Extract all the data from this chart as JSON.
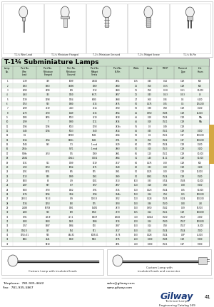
{
  "title": "T-1¾ Subminiature Lamps",
  "page_num": "41",
  "catalog": "Engineering Catalog 169",
  "company": "Gilway",
  "company_sub": "Technical Lamps",
  "telephone": "Telephone:  781-935-4442",
  "fax": "Fax:  781-935-5867",
  "email": "sales@gilway.com",
  "website": "www.gilway.com",
  "table_header_bg": "#c8ddc8",
  "col_headers_line1": [
    "Lamp",
    "Part No.",
    "Part No.",
    "Part No.",
    "Part No.",
    "Part No.",
    "",
    "",
    "",
    "Filament",
    "Life"
  ],
  "col_headers_line2": [
    "No.",
    "Wire",
    "Miniature",
    "Miniature",
    "Midget",
    "Bi-Pin",
    "Watts",
    "Amps",
    "MSCP",
    "Type",
    "Hours"
  ],
  "col_headers_line3": [
    "",
    "Lead",
    "Flanged",
    "Grooved",
    "Screw",
    "",
    "",
    "",
    "",
    "",
    ""
  ],
  "rows": [
    [
      "1",
      "4139",
      "339",
      "1099",
      "49610",
      "7851",
      "1.35",
      "0.45",
      "0-14",
      "C-2R",
      "500"
    ],
    [
      "2",
      "1763",
      "1963",
      "34090",
      "1769",
      "7860",
      "2.5",
      "0.50",
      "0-3.5",
      "C-2R",
      "500"
    ],
    [
      "3",
      "2499",
      "2499",
      "299",
      "7312",
      "7860",
      "2.5",
      "0.50",
      "0-3.8",
      "0-2.1",
      "10,000"
    ],
    [
      "4",
      "4663",
      "343",
      "1760",
      "68.71",
      "7857",
      "2.5",
      "0.43",
      "0-4.3",
      "0-3.3",
      "40"
    ],
    [
      "5",
      "1739",
      "1398",
      "1764",
      "6080",
      "7868",
      "2.7",
      "0.60",
      "0.06",
      "0-4",
      "6,100"
    ],
    [
      "6",
      "1753",
      "573",
      "1980",
      "7515",
      "7875",
      "5.0",
      "0.175",
      "0.05",
      "C-6",
      "125,000"
    ],
    [
      "7",
      "2199",
      "7519",
      "7543",
      "7514",
      "7950",
      "5.0",
      "0.38",
      "0.58",
      "C-2R",
      "1,500"
    ],
    [
      "8",
      "2173",
      "7593",
      "1549",
      "7515",
      "7854",
      "4.5",
      "0.350",
      "0.505",
      "C-2R",
      "25,000"
    ],
    [
      "9",
      "2085",
      "2855",
      "5053",
      "7519",
      "7818",
      "4.5",
      "0.18",
      "0.516",
      "C-2R",
      "N/A"
    ],
    [
      "10",
      "2199",
      "7",
      "1980",
      "1111",
      "7816",
      "4.5",
      "0.18",
      "0.511",
      "C-2R",
      "N/A"
    ],
    [
      "11",
      "1196",
      "1196",
      "5053",
      "1193",
      "7816c",
      "3.5",
      "0.3",
      "0.49",
      "C-2R",
      ""
    ],
    [
      "12",
      "4346",
      "1194",
      "5053",
      "7943",
      "7814",
      "4.5",
      "0.45",
      "0.511",
      "C-2R",
      "1,000"
    ],
    [
      "13",
      "8.1",
      "",
      "81903",
      "5041",
      "7204",
      "5.0",
      "0.4",
      "0.511",
      "C-2F",
      "100,000"
    ],
    [
      "14",
      "0014",
      "7154",
      "8760c",
      "8041",
      "7391",
      "5.0",
      "0.50",
      "0.512",
      "C-1F",
      "100,000"
    ],
    [
      "15",
      "1744",
      "553",
      "371",
      "1 mod",
      "7529",
      "6.0",
      "0.70",
      "0.514",
      "C-2R",
      "1,500"
    ],
    [
      "16",
      "2764c",
      "",
      "5571",
      "1 mod",
      "7863",
      "5.0",
      "0.10",
      "0.513",
      "C-2R",
      "3,100"
    ],
    [
      "17",
      "5196c",
      "7553",
      "975",
      "1769",
      "7861",
      "6.5",
      "1.10",
      "0.511",
      "C-2R",
      "10,500"
    ],
    [
      "18",
      "21581",
      "",
      "7064.1",
      "C1031",
      "7864",
      "5.1",
      "1.40",
      "14.11",
      "C-2R",
      "10,500"
    ],
    [
      "19",
      "1731",
      "971",
      "1799",
      "1719",
      "7917",
      "6.0",
      "0.175",
      "0.33",
      "C-2R",
      "500"
    ],
    [
      "20",
      "4193",
      "1053",
      "1054",
      "7471",
      "7940",
      "6.0",
      "0.33",
      "0.43",
      "C-2R",
      "3,100"
    ],
    [
      "21",
      "2191",
      "1691",
      "875",
      "575",
      "7961",
      "5.0",
      "0.125",
      "0.43",
      "C-2R",
      "25,000"
    ],
    [
      "22",
      "1113",
      "549",
      "1999",
      "1161",
      "7969",
      "5.0",
      "0.461",
      "0.514",
      "C-2R",
      "5,500"
    ],
    [
      "23",
      "1803",
      "83",
      "759",
      "1001",
      "7913",
      "10.0",
      "0.33",
      "0.714",
      "0.505",
      "10,000"
    ],
    [
      "24",
      "2187",
      "857",
      "397",
      "3957",
      "7857",
      "11.0",
      "0.18",
      "0.58",
      "0.08",
      "5,000"
    ],
    [
      "25",
      "5303",
      "7393",
      "1352",
      "7391",
      "7315",
      "11.0",
      "0.123",
      "0.514",
      "0.15",
      "10,000"
    ],
    [
      "26",
      "2174",
      "1994",
      "7154",
      "7994",
      "7946c",
      "12.0",
      "0.14",
      "0.54",
      "0.11",
      "100,000"
    ],
    [
      "27",
      "2193.1",
      "993.3",
      "399",
      "1193.3",
      "7952",
      "11.0",
      "0.128",
      "0.535",
      "0.124",
      "100,000"
    ],
    [
      "28",
      "1734",
      "1353",
      "190",
      "975",
      "7993",
      "14.0",
      "0.36",
      "0.530",
      "0.40",
      "750"
    ],
    [
      "29",
      "21483",
      "89718",
      "1491",
      "14491",
      "7873",
      "14.0",
      "0.950",
      "0.542",
      "0.19",
      "50,500"
    ],
    [
      "30",
      "2183",
      "975",
      "549",
      "8150",
      "7973",
      "14.5",
      "0.14",
      "0.511",
      "C-2R",
      "100,500"
    ],
    [
      "31",
      "3491",
      "456.9",
      "457.1",
      "14637",
      "74610",
      "32.0",
      "0.1024",
      "0.530",
      "0.517",
      "2,000"
    ],
    [
      "32",
      "2183",
      "1983",
      "1361",
      "1384",
      "7974",
      "20.0",
      "0.14",
      "0.550",
      "0.517",
      "100,500"
    ],
    [
      "33",
      "7157",
      "1987",
      "1984",
      "500",
      "7987",
      "15.0",
      "0.14",
      "0.58",
      "0.517",
      "75,000"
    ],
    [
      "34",
      "1762.3",
      "937",
      "954",
      "951",
      "7917",
      "15.0",
      "0.14",
      "0.514",
      "0.514",
      "7,000"
    ],
    [
      "35",
      "1750c,51",
      "575",
      "844.51",
      "1005.51",
      "79.75",
      "19.0",
      "0.128",
      "0.514",
      "0.2P",
      "45,000"
    ],
    [
      "36",
      "8861",
      "7241",
      "1350",
      "5861",
      "7975",
      "20.0",
      "1.000",
      "0.505",
      "C-2R",
      "5,000"
    ],
    [
      "37",
      "",
      "8910",
      "",
      "",
      "7891",
      "40.0",
      "1.000",
      "0.511",
      "C-2P",
      "5,000"
    ]
  ],
  "lamp_types": [
    "T-1¾ Wire Lead",
    "T-1¾ Miniature Flanged",
    "T-1¾ Miniature Grooved",
    "T-1¾ Midget Screw",
    "T-1¾ Bi-Pin"
  ],
  "custom_lamp1": "Custom Lamp with insulated leads",
  "custom_lamp2": "Custom Lamp with\ninsulated leads and connector",
  "sidebar_color": "#d4a843"
}
